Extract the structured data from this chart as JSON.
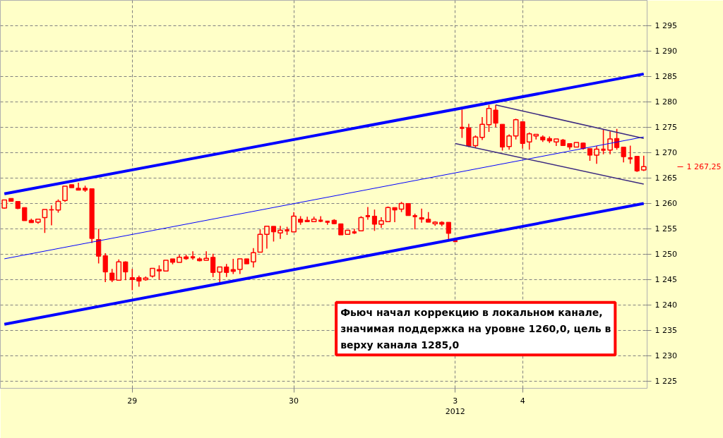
{
  "chart_data": {
    "type": "candlestick",
    "categories": [
      null,
      null,
      null,
      null,
      null,
      null,
      null,
      null,
      null,
      null,
      null,
      null,
      null,
      null,
      null,
      null,
      null,
      null,
      null,
      "29",
      null,
      null,
      null,
      null,
      null,
      null,
      null,
      null,
      null,
      null,
      null,
      null,
      null,
      null,
      null,
      null,
      null,
      null,
      null,
      null,
      null,
      null,
      null,
      "30",
      null,
      null,
      null,
      null,
      null,
      null,
      null,
      null,
      null,
      null,
      null,
      null,
      null,
      null,
      null,
      null,
      null,
      null,
      null,
      null,
      null,
      null,
      null,
      "3",
      null,
      null,
      null,
      null,
      null,
      null,
      null,
      null,
      null,
      "4",
      null,
      null,
      null,
      null,
      null,
      null,
      null,
      null,
      null,
      null,
      null,
      null,
      null,
      null,
      null,
      null,
      null,
      null
    ],
    "ylim": [
      1223.6,
      1300
    ],
    "yticks": [
      {
        "value": 1225,
        "label": "1 225"
      },
      {
        "value": 1230,
        "label": "1 230"
      },
      {
        "value": 1235,
        "label": "1 235"
      },
      {
        "value": 1240,
        "label": "1 240"
      },
      {
        "value": 1245,
        "label": "1 245"
      },
      {
        "value": 1250,
        "label": "1 250"
      },
      {
        "value": 1255,
        "label": "1 255"
      },
      {
        "value": 1260,
        "label": "1 260"
      },
      {
        "value": 1265,
        "label": "1 265"
      },
      {
        "value": 1270,
        "label": "1 270"
      },
      {
        "value": 1275,
        "label": "1 275"
      },
      {
        "value": 1280,
        "label": "1 280"
      },
      {
        "value": 1285,
        "label": "1 285"
      },
      {
        "value": 1290,
        "label": "1 290"
      },
      {
        "value": 1295,
        "label": "1 295"
      }
    ],
    "grid": true,
    "series": [
      {
        "color": "#ff0000",
        "ohlc": [
          [
            1259.1,
            1260.7,
            1259.0,
            1260.7
          ],
          [
            1261.0,
            1261.0,
            1260.4,
            1260.4
          ],
          [
            1260.4,
            1260.4,
            1258.9,
            1259.0
          ],
          [
            1259.2,
            1259.2,
            1256.6,
            1256.6
          ],
          [
            1256.7,
            1257.0,
            1256.2,
            1256.2
          ],
          [
            1256.3,
            1257.0,
            1256.0,
            1256.9
          ],
          [
            1257.2,
            1258.8,
            1254.2,
            1258.8
          ],
          [
            1258.8,
            1259.6,
            1255.7,
            1258.7
          ],
          [
            1258.7,
            1260.8,
            1258.2,
            1260.4
          ],
          [
            1260.6,
            1263.4,
            1260.3,
            1263.4
          ],
          [
            1263.7,
            1263.7,
            1263.1,
            1263.1
          ],
          [
            1263.0,
            1264.1,
            1262.6,
            1262.6
          ],
          [
            1263.0,
            1263.5,
            1262.3,
            1262.6
          ],
          [
            1262.9,
            1262.9,
            1252.2,
            1253.1
          ],
          [
            1252.9,
            1255.0,
            1248.2,
            1249.6
          ],
          [
            1249.7,
            1250.2,
            1244.5,
            1246.5
          ],
          [
            1246.3,
            1247.1,
            1244.5,
            1244.9
          ],
          [
            1244.9,
            1249.0,
            1244.8,
            1248.5
          ],
          [
            1248.5,
            1248.6,
            1244.9,
            1246.5
          ],
          [
            1245.4,
            1247.1,
            1242.9,
            1245.0
          ],
          [
            1245.4,
            1245.8,
            1243.6,
            1244.7
          ],
          [
            1245.0,
            1245.6,
            1244.8,
            1245.3
          ],
          [
            1245.7,
            1247.2,
            1245.4,
            1247.2
          ],
          [
            1247.0,
            1247.8,
            1245.0,
            1246.7
          ],
          [
            1246.7,
            1248.8,
            1246.7,
            1248.8
          ],
          [
            1249.1,
            1249.1,
            1248.0,
            1248.4
          ],
          [
            1248.4,
            1249.9,
            1248.4,
            1249.4
          ],
          [
            1249.5,
            1249.9,
            1248.9,
            1249.1
          ],
          [
            1249.4,
            1250.6,
            1248.9,
            1249.4
          ],
          [
            1249.1,
            1249.4,
            1248.6,
            1248.7
          ],
          [
            1248.8,
            1250.6,
            1248.8,
            1249.2
          ],
          [
            1249.4,
            1250.1,
            1245.5,
            1246.4
          ],
          [
            1246.5,
            1247.5,
            1244.4,
            1247.5
          ],
          [
            1247.5,
            1248.1,
            1245.5,
            1246.4
          ],
          [
            1247.0,
            1249.1,
            1246.1,
            1246.6
          ],
          [
            1247.0,
            1249.1,
            1246.1,
            1249.1
          ],
          [
            1249.1,
            1249.1,
            1248.1,
            1248.1
          ],
          [
            1248.5,
            1251.2,
            1247.4,
            1250.3
          ],
          [
            1250.4,
            1254.9,
            1250.4,
            1253.9
          ],
          [
            1253.9,
            1255.5,
            1251.1,
            1255.5
          ],
          [
            1255.5,
            1255.5,
            1252.5,
            1254.4
          ],
          [
            1254.2,
            1255.6,
            1253.0,
            1254.7
          ],
          [
            1254.7,
            1255.4,
            1253.8,
            1254.7
          ],
          [
            1254.4,
            1258.3,
            1254.4,
            1257.5
          ],
          [
            1256.9,
            1257.5,
            1255.8,
            1256.3
          ],
          [
            1256.7,
            1257.4,
            1256.4,
            1256.4
          ],
          [
            1256.4,
            1257.4,
            1256.4,
            1256.9
          ],
          [
            1256.6,
            1257.5,
            1256.3,
            1256.6
          ],
          [
            1256.4,
            1256.6,
            1255.8,
            1256.4
          ],
          [
            1256.7,
            1256.9,
            1255.9,
            1256.0
          ],
          [
            1256.0,
            1256.0,
            1253.8,
            1253.8
          ],
          [
            1253.9,
            1254.7,
            1253.9,
            1254.7
          ],
          [
            1254.3,
            1255.0,
            1254.0,
            1254.3
          ],
          [
            1254.6,
            1257.5,
            1254.5,
            1257.2
          ],
          [
            1257.5,
            1259.3,
            1256.8,
            1257.5
          ],
          [
            1257.5,
            1258.8,
            1254.6,
            1255.9
          ],
          [
            1255.9,
            1257.3,
            1255.2,
            1256.6
          ],
          [
            1256.4,
            1259.4,
            1256.4,
            1259.2
          ],
          [
            1259.2,
            1259.2,
            1256.3,
            1258.7
          ],
          [
            1258.9,
            1260.3,
            1258.3,
            1260.0
          ],
          [
            1260.0,
            1260.0,
            1257.6,
            1257.6
          ],
          [
            1257.5,
            1258.0,
            1254.9,
            1257.5
          ],
          [
            1257.2,
            1259.0,
            1256.2,
            1256.9
          ],
          [
            1256.9,
            1258.3,
            1256.3,
            1256.3
          ],
          [
            1256.0,
            1256.5,
            1255.6,
            1256.3
          ],
          [
            1256.3,
            1256.5,
            1255.5,
            1255.9
          ],
          [
            1256.3,
            1256.3,
            1252.9,
            1254.1
          ],
          [
            1252.6,
            1252.6,
            1252.6,
            1252.6
          ],
          [
            1274.9,
            1278.5,
            1272.9,
            1274.9
          ],
          [
            1274.9,
            1275.7,
            1271.1,
            1271.3
          ],
          [
            1271.4,
            1273.4,
            1270.9,
            1273.1
          ],
          [
            1273.0,
            1277.0,
            1272.5,
            1275.6
          ],
          [
            1275.5,
            1279.4,
            1274.1,
            1278.7
          ],
          [
            1278.4,
            1279.4,
            1275.0,
            1275.8
          ],
          [
            1275.6,
            1275.6,
            1270.4,
            1271.1
          ],
          [
            1271.2,
            1273.6,
            1270.6,
            1273.3
          ],
          [
            1273.3,
            1276.7,
            1272.6,
            1276.5
          ],
          [
            1276.1,
            1276.1,
            1270.8,
            1271.8
          ],
          [
            1272.1,
            1274.0,
            1270.6,
            1273.7
          ],
          [
            1273.3,
            1273.6,
            1272.6,
            1273.6
          ],
          [
            1273.1,
            1273.4,
            1272.1,
            1272.5
          ],
          [
            1272.8,
            1273.2,
            1271.9,
            1272.3
          ],
          [
            1272.1,
            1272.7,
            1271.3,
            1272.7
          ],
          [
            1272.5,
            1272.7,
            1271.3,
            1271.4
          ],
          [
            1271.8,
            1271.8,
            1270.6,
            1271.1
          ],
          [
            1271.1,
            1272.0,
            1271.1,
            1272.0
          ],
          [
            1271.9,
            1272.0,
            1270.6,
            1270.8
          ],
          [
            1270.8,
            1270.8,
            1268.4,
            1269.5
          ],
          [
            1269.5,
            1271.3,
            1267.8,
            1270.7
          ],
          [
            1270.6,
            1274.5,
            1269.7,
            1270.6
          ],
          [
            1270.5,
            1274.2,
            1269.7,
            1272.7
          ],
          [
            1272.8,
            1274.7,
            1270.6,
            1271.0
          ],
          [
            1271.1,
            1271.1,
            1268.1,
            1269.2
          ],
          [
            1268.9,
            1271.4,
            1267.8,
            1268.9
          ],
          [
            1269.3,
            1269.3,
            1266.2,
            1266.4
          ],
          [
            1266.6,
            1269.4,
            1266.4,
            1267.25
          ]
        ]
      },
      {
        "type": "line",
        "color": "#0000ff",
        "values": [
          1261.9,
          null,
          null,
          null,
          null,
          null,
          null,
          null,
          null,
          null,
          null,
          null,
          null,
          null,
          null,
          null,
          null,
          null,
          null,
          null,
          null,
          null,
          null,
          null,
          null,
          null,
          null,
          null,
          null,
          null,
          null,
          null,
          null,
          null,
          null,
          null,
          null,
          null,
          null,
          null,
          null,
          null,
          null,
          null,
          null,
          null,
          null,
          null,
          null,
          null,
          null,
          null,
          null,
          null,
          null,
          null,
          null,
          null,
          null,
          null,
          null,
          null,
          null,
          null,
          null,
          null,
          null,
          null,
          null,
          null,
          null,
          null,
          null,
          null,
          null,
          null,
          null,
          null,
          null,
          null,
          null,
          null,
          null,
          null,
          null,
          null,
          null,
          null,
          null,
          null,
          null,
          null,
          null,
          null,
          null,
          1285.5
        ]
      },
      {
        "type": "line",
        "color": "#0000ff",
        "values": [
          1249.1,
          null,
          null,
          null,
          null,
          null,
          null,
          null,
          null,
          null,
          null,
          null,
          null,
          null,
          null,
          null,
          null,
          null,
          null,
          null,
          null,
          null,
          null,
          null,
          null,
          null,
          null,
          null,
          null,
          null,
          null,
          null,
          null,
          null,
          null,
          null,
          null,
          null,
          null,
          null,
          null,
          null,
          null,
          null,
          null,
          null,
          null,
          null,
          null,
          null,
          null,
          null,
          null,
          null,
          null,
          null,
          null,
          null,
          null,
          null,
          null,
          null,
          null,
          null,
          null,
          null,
          null,
          null,
          null,
          null,
          null,
          null,
          null,
          null,
          null,
          null,
          null,
          null,
          null,
          null,
          null,
          null,
          null,
          null,
          null,
          null,
          null,
          null,
          null,
          null,
          null,
          null,
          null,
          null,
          null,
          1273.1
        ]
      },
      {
        "type": "line",
        "color": "#0000ff",
        "values": [
          1236.2,
          null,
          null,
          null,
          null,
          null,
          null,
          null,
          null,
          null,
          null,
          null,
          null,
          null,
          null,
          null,
          null,
          null,
          null,
          null,
          null,
          null,
          null,
          null,
          null,
          null,
          null,
          null,
          null,
          null,
          null,
          null,
          null,
          null,
          null,
          null,
          null,
          null,
          null,
          null,
          null,
          null,
          null,
          null,
          null,
          null,
          null,
          null,
          null,
          null,
          null,
          null,
          null,
          null,
          null,
          null,
          null,
          null,
          null,
          null,
          null,
          null,
          null,
          null,
          null,
          null,
          null,
          null,
          null,
          null,
          null,
          null,
          null,
          null,
          null,
          null,
          null,
          null,
          null,
          null,
          null,
          null,
          null,
          null,
          null,
          null,
          null,
          null,
          null,
          null,
          null,
          null,
          null,
          null,
          null,
          1260.0
        ]
      },
      {
        "type": "line",
        "color": "#3c2a80",
        "values": [
          null,
          null,
          null,
          null,
          null,
          null,
          null,
          null,
          null,
          null,
          null,
          null,
          null,
          null,
          null,
          null,
          null,
          null,
          null,
          null,
          null,
          null,
          null,
          null,
          null,
          null,
          null,
          null,
          null,
          null,
          null,
          null,
          null,
          null,
          null,
          null,
          null,
          null,
          null,
          null,
          null,
          null,
          null,
          null,
          null,
          null,
          null,
          null,
          null,
          null,
          null,
          null,
          null,
          null,
          null,
          null,
          null,
          null,
          null,
          null,
          null,
          null,
          null,
          null,
          null,
          null,
          null,
          null,
          null,
          null,
          null,
          null,
          null,
          1279.4,
          null,
          null,
          null,
          null,
          null,
          null,
          null,
          null,
          null,
          null,
          null,
          null,
          null,
          null,
          null,
          null,
          null,
          null,
          null,
          null,
          null,
          1272.8
        ]
      },
      {
        "type": "line",
        "color": "#3c2a80",
        "values": [
          null,
          null,
          null,
          null,
          null,
          null,
          null,
          null,
          null,
          null,
          null,
          null,
          null,
          null,
          null,
          null,
          null,
          null,
          null,
          null,
          null,
          null,
          null,
          null,
          null,
          null,
          null,
          null,
          null,
          null,
          null,
          null,
          null,
          null,
          null,
          null,
          null,
          null,
          null,
          null,
          null,
          null,
          null,
          null,
          null,
          null,
          null,
          null,
          null,
          null,
          null,
          null,
          null,
          null,
          null,
          null,
          null,
          null,
          null,
          null,
          null,
          null,
          null,
          null,
          null,
          null,
          null,
          1271.8,
          null,
          null,
          null,
          null,
          null,
          null,
          null,
          null,
          null,
          null,
          null,
          null,
          null,
          null,
          null,
          null,
          null,
          null,
          null,
          null,
          null,
          null,
          null,
          null,
          null,
          null,
          null,
          1263.8
        ]
      }
    ],
    "annotations": [
      "1 267,25",
      "2012",
      "Фьюч начал коррекцию в локальном канале, значимая поддержка на уровне 1260,0, цель в верху канала 1285,0"
    ]
  }
}
